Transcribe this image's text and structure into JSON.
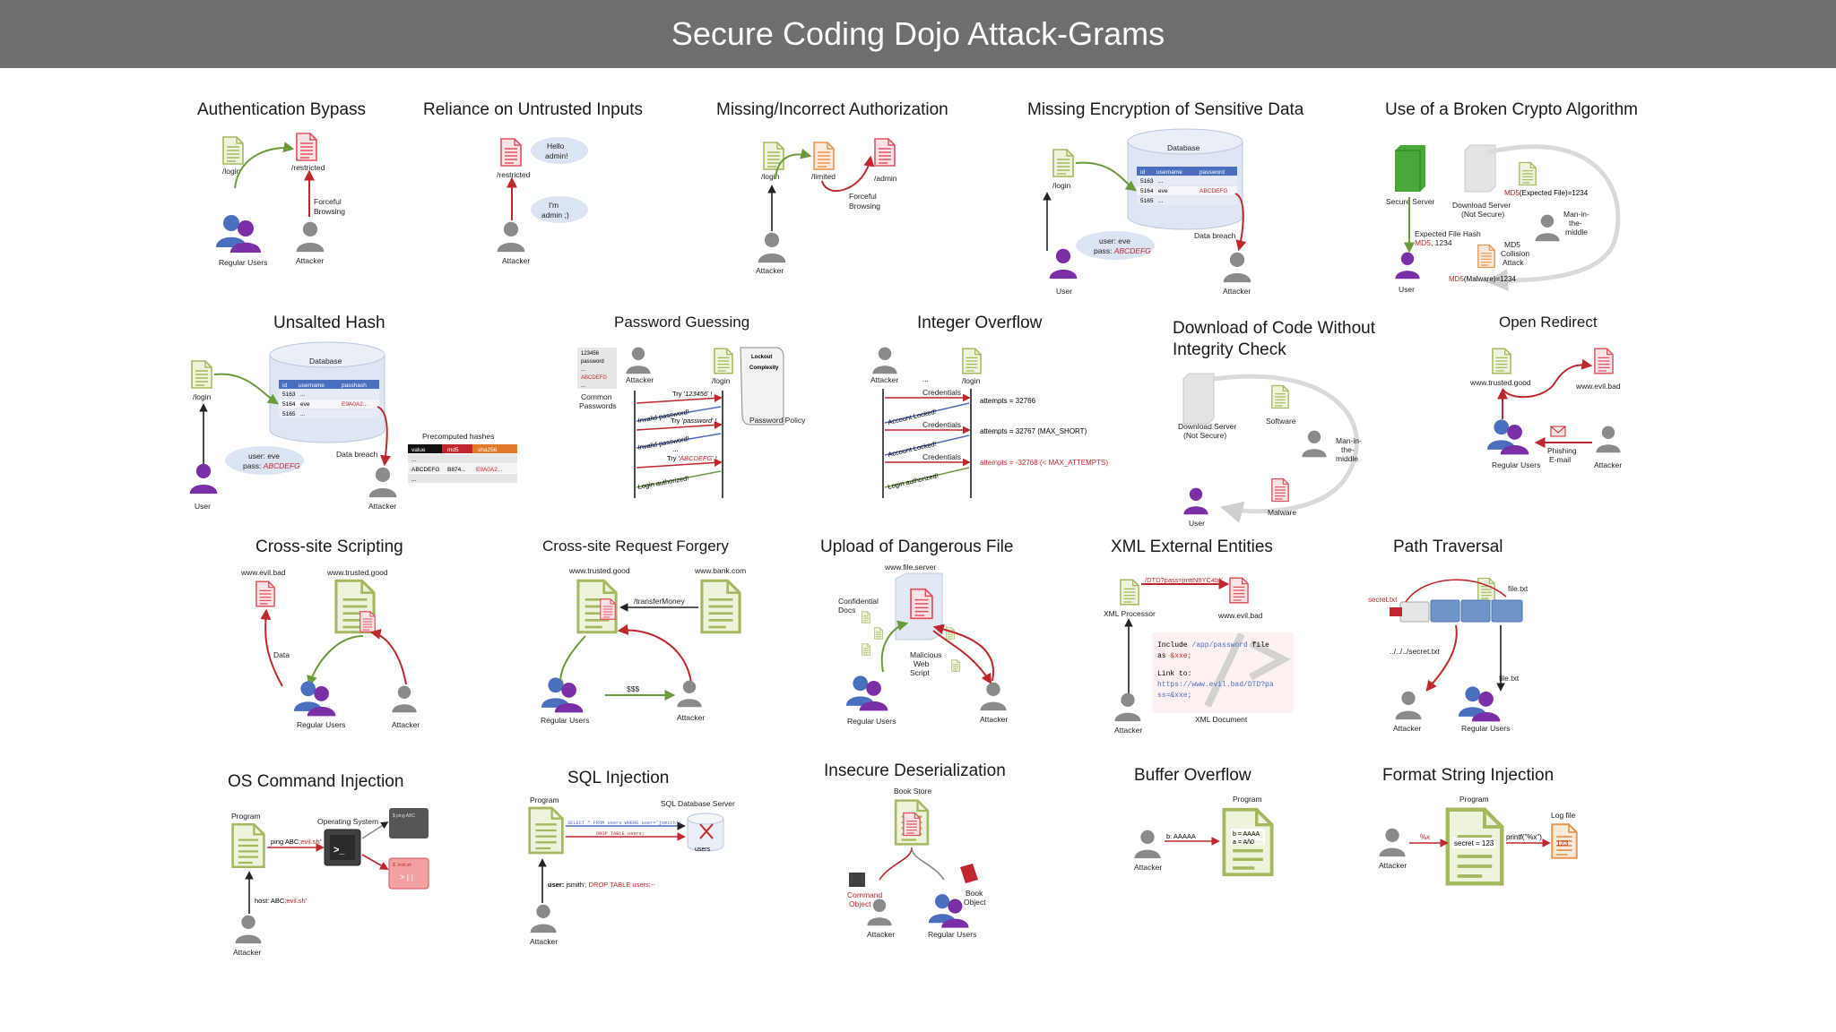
{
  "title": "Secure Coding Dojo Attack-Grams",
  "colors": {
    "header_bg": "#6e6e6e",
    "good_doc": "#a4b85f",
    "bad_doc": "#e05262",
    "limited_doc": "#e89552",
    "user_purple": "#7a2fa6",
    "user_blue": "#4b6fbf",
    "attacker_gray": "#8a8a8a",
    "arrow_red": "#c0262d",
    "arrow_green": "#6a9a3a"
  },
  "icons": [
    "good-document-icon",
    "bad-document-icon",
    "user-icon",
    "attacker-icon",
    "database-icon",
    "server-icon",
    "terminal-icon",
    "envelope-icon",
    "book-icon"
  ],
  "auth": {
    "title": "Authentication Bypass",
    "login": "/login",
    "restricted": "/restricted",
    "forceful": "Forceful",
    "browsing": "Browsing",
    "users": "Regular Users",
    "attacker": "Attacker"
  },
  "untrusted": {
    "title": "Reliance on Untrusted Inputs",
    "restricted": "/restricted",
    "b1a": "Hello",
    "b1b": "admin!",
    "b2a": "I'm",
    "b2b": "admin ;)",
    "attacker": "Attacker"
  },
  "authz": {
    "title": "Missing/Incorrect Authorization",
    "login": "/login",
    "limited": "/limited",
    "admin": "/admin",
    "forceful": "Forceful",
    "browsing": "Browsing",
    "attacker": "Attacker"
  },
  "encrypt": {
    "title": "Missing Encryption of Sensitive Data",
    "db": "Database",
    "cols": [
      "id",
      "username",
      "password"
    ],
    "rows": [
      [
        "5163",
        "...",
        ""
      ],
      [
        "5164",
        "eve",
        "ABCDEFG"
      ],
      [
        "5165",
        "...",
        ""
      ]
    ],
    "login": "/login",
    "cred1": "user: eve",
    "cred2a": "pass: ",
    "cred2b": "ABCDEFG",
    "breach": "Data breach",
    "user": "User",
    "attacker": "Attacker"
  },
  "crypto": {
    "title": "Use of a Broken Crypto Algorithm",
    "secure": "Secure Server",
    "download1": "Download Server",
    "download2": "(Not Secure)",
    "md5a": "MD5",
    "exp": "(Expected File)=1234",
    "hash1": "Expected File Hash",
    "hash2a": "MD5",
    "hash2b": ", 1234",
    "mitm1": "Man-in-",
    "mitm2": "the-",
    "mitm3": "middle",
    "col1": "MD5",
    "col2": "Collision",
    "col3": "Attack",
    "md5b": "MD5",
    "mal": "(Malware)=1234",
    "user": "User"
  },
  "unsalted": {
    "title": "Unsalted Hash",
    "db": "Database",
    "cols": [
      "id",
      "username",
      "passhash"
    ],
    "rows": [
      [
        "5163",
        "...",
        ""
      ],
      [
        "5164",
        "eve",
        "E9A0A2..."
      ],
      [
        "5165",
        "...",
        ""
      ]
    ],
    "login": "/login",
    "cred1": "user: eve",
    "cred2a": "pass: ",
    "cred2b": "ABCDEFG",
    "breach": "Data breach",
    "pre": "Precomputed hashes",
    "pcols": [
      "value",
      "md5",
      "sha256"
    ],
    "prow1": [
      "...",
      "",
      ""
    ],
    "prow2": [
      "ABCDEFG",
      "B874...",
      "E9A0A2..."
    ],
    "prow3": [
      "...",
      "",
      ""
    ],
    "user": "User",
    "attacker": "Attacker"
  },
  "guess": {
    "title": "Password Guessing",
    "list": [
      "123456",
      "password",
      "...",
      "ABCDEFG",
      "..."
    ],
    "common1": "Common",
    "common2": "Passwords",
    "attacker": "Attacker",
    "login": "/login",
    "lockout": "Lockout",
    "complexity": "Complexity",
    "policy": "Password Policy",
    "t1a": "Try '",
    "t1b": "123456",
    "t1c": "' !",
    "r1": "Invalid password!",
    "t2a": "Try '",
    "t2b": "password",
    "t2c": "' !",
    "r2": "Invalid password!",
    "dots": "...",
    "t3a": "Try '",
    "t3b": "ABCDEFG",
    "t3c": "' !",
    "r3": "Login authorized!"
  },
  "intof": {
    "title": "Integer Overflow",
    "attacker": "Attacker",
    "dots": "...",
    "login": "/login",
    "cred": "Credentials",
    "a1": "attempts = 32766",
    "l1": "Account Locked!",
    "a2": "attempts = 32767 (MAX_SHORT)",
    "l2": "Account Locked!",
    "a3": "attempts = -32768 (< MAX_ATTEMPTS)",
    "ok": "Login authorized!"
  },
  "integrity": {
    "title1": "Download of Code Without",
    "title2": "Integrity Check",
    "dl1": "Download Server",
    "dl2": "(Not Secure)",
    "software": "Software",
    "mitm1": "Man-in-",
    "mitm2": "the-",
    "mitm3": "middle",
    "malware": "Malware",
    "user": "User"
  },
  "redirect": {
    "title": "Open Redirect",
    "good": "www.trusted.good",
    "bad": "www.evil.bad",
    "phish1": "Phishing",
    "phish2": "E-mail",
    "users": "Regular Users",
    "attacker": "Attacker"
  },
  "xss": {
    "title": "Cross-site Scripting",
    "bad": "www.evil.bad",
    "good": "www.trusted.good",
    "data": "Data",
    "users": "Regular Users",
    "attacker": "Attacker"
  },
  "csrf": {
    "title": "Cross-site Request Forgery",
    "good": "www.trusted.good",
    "bank": "www.bank.com",
    "transfer": "/transferMoney",
    "money": "$$$",
    "users": "Regular Users",
    "attacker": "Attacker"
  },
  "upload": {
    "title": "Upload of Dangerous File",
    "server": "www.file.server",
    "conf1": "Confidential",
    "conf2": "Docs",
    "mal1": "Malicious",
    "mal2": "Web",
    "mal3": "Script",
    "users": "Regular Users",
    "attacker": "Attacker"
  },
  "xxe": {
    "title": "XML External Entities",
    "url": "/DTD?pass=jmttN9YC4bK",
    "proc": "XML Processor",
    "bad": "www.evil.bad",
    "code1a": "Include ",
    "code1b": "/app/password",
    "code1c": " file",
    "code2a": "as ",
    "code2b": "&xxe;",
    "code3": "Link to:",
    "code4": "https://www.evil.bad/DTD?pa",
    "code5": "ss=&xxe;",
    "doc": "XML Document",
    "attacker": "Attacker"
  },
  "path": {
    "title": "Path Traversal",
    "secret": "secret.txt",
    "file1": "file.txt",
    "trav": "../../../secret.txt",
    "file2": "file.txt",
    "attacker": "Attacker",
    "users": "Regular Users"
  },
  "oscmd": {
    "title": "OS Command Injection",
    "program": "Program",
    "os": "Operating System",
    "pa": "ping ABC",
    "pb": ";evil.sh",
    "pc": "'",
    "winr": "$ ./evil.sh",
    "winp": "$ ping ABC",
    "prompt": ">_",
    "winc": "> |  |",
    "ha": "host: ABC",
    "hb": ";evil.sh",
    "hc": "'",
    "attacker": "Attacker"
  },
  "sqli": {
    "title": "SQL Injection",
    "program": "Program",
    "server": "SQL Database Server",
    "q1": "SELECT * FROM users WHERE user='jsmith';",
    "q2": "DROP TABLE users;",
    "dbname": "users",
    "ua": "user: ",
    "ub": "jsmith",
    "uc": "'; DROP TABLE users;--",
    "attacker": "Attacker"
  },
  "deser": {
    "title": "Insecure Deserialization",
    "store": "Book Store",
    "cmd1": "Command",
    "cmd2": "Object",
    "book1": "Book",
    "book2": "Object",
    "attacker": "Attacker",
    "users": "Regular Users"
  },
  "buffer": {
    "title": "Buffer Overflow",
    "program": "Program",
    "inb": "b: AAAAA",
    "b1": "b = AAAA",
    "b2": "a = A/\\0",
    "attacker": "Attacker"
  },
  "format": {
    "title": "Format String Injection",
    "program": "Program",
    "fmt": "%x",
    "secret": "secret = 123",
    "printf": "printf(\"%x\")",
    "log": "Log file",
    "val": "123",
    "attacker": "Attacker"
  }
}
